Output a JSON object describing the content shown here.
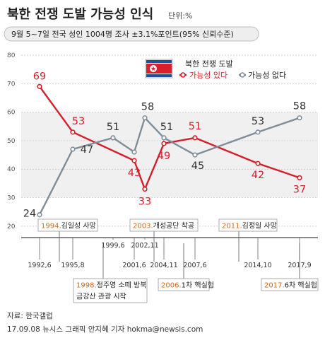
{
  "header": {
    "title": "북한 전쟁 도발 가능성 인식",
    "unit": "단위:%",
    "subtitle": "9월 5~7일 전국 성인 1004명 조사 ±3.1%포인트(95% 신뢰수준)"
  },
  "colors": {
    "series_yes": "#d41f2b",
    "series_no": "#7f8c9a",
    "event_year": "#d9661b",
    "plot_bg": "#f0f0f0"
  },
  "chart_data": {
    "type": "line",
    "x": [
      "1992,6",
      "1995,8",
      "1999,6",
      "2001,6",
      "2002,11",
      "2004,11",
      "2007,6",
      "2014,10",
      "2017,9"
    ],
    "ylim": [
      15,
      80
    ],
    "yticks": [
      20,
      30,
      40,
      50,
      60,
      70,
      80
    ],
    "legend": {
      "title": "북한 전쟁 도발",
      "placement": "top-right"
    },
    "series": [
      {
        "name": "가능성 있다",
        "values": [
          69,
          53,
          null,
          43,
          33,
          49,
          51,
          42,
          37
        ]
      },
      {
        "name": "가능성 없다",
        "values": [
          24,
          47,
          51,
          46,
          58,
          51,
          45,
          53,
          58
        ]
      }
    ],
    "value_labels": {
      "가능성 있다": [
        "69",
        "53",
        "",
        "43",
        "33",
        "49",
        "51",
        "42",
        "37"
      ],
      "가능성 없다": [
        "24",
        "47",
        "51",
        "",
        "58",
        "51",
        "45",
        "53",
        "58"
      ]
    },
    "annotations": [
      {
        "year": "1994.",
        "text": "김일성 사망",
        "row": "top",
        "x_between": [
          0,
          1
        ]
      },
      {
        "year": "2003.",
        "text": "개성공단 착공",
        "row": "top",
        "x_between": [
          4,
          5
        ]
      },
      {
        "year": "2011.",
        "text": "김정일 사망",
        "row": "top",
        "x_between": [
          6,
          7
        ]
      },
      {
        "year": "1998.",
        "text": "정주영 소떼 방북",
        "line2": "금강산 관광 시작",
        "row": "bottom",
        "x_between": [
          1,
          2
        ]
      },
      {
        "year": "2006.",
        "text": "1차 핵실험",
        "row": "bottom",
        "x_between": [
          5,
          6
        ]
      },
      {
        "year": "2017.",
        "text": "6차 핵실험",
        "row": "bottom",
        "x_between": [
          8,
          8
        ]
      }
    ]
  },
  "footer": {
    "source": "자료: 한국갤럽",
    "credit": "17.09.08 뉴시스 그래픽 안지혜 기자 hokma@newsis.com"
  }
}
